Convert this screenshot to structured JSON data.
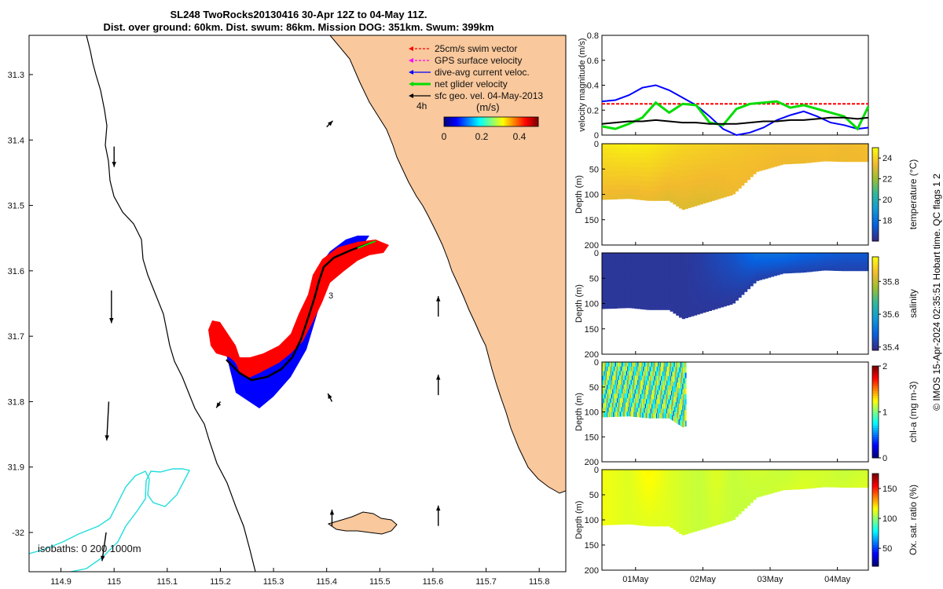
{
  "title": {
    "line1": "SL248 TwoRocks20130416 30-Apr 12Z to 04-May 11Z.",
    "line2": "Dist. over ground: 60km. Dist. swum: 86km. Mission DOG: 351km. Swum: 399km"
  },
  "copyright": "© IMOS 15-Apr-2024 02:35:51 Hobart time. QC flags 1  2",
  "colors": {
    "land": "#f9c89c",
    "swim": "#ff0000",
    "gps": "#ff00ff",
    "dive_avg": "#0000ff",
    "net": "#00dd00",
    "geo": "#000000",
    "isobath_200": "#22dddd"
  },
  "map": {
    "legend": [
      {
        "label": "25cm/s swim vector",
        "color": "#ff0000",
        "style": "dashed"
      },
      {
        "label": "GPS surface velocity",
        "color": "#ff00ff",
        "style": "dashed"
      },
      {
        "label": "dive-avg current veloc.",
        "color": "#0000ff",
        "style": "solid"
      },
      {
        "label": "net glider velocity",
        "color": "#00dd00",
        "style": "thick"
      },
      {
        "label": "sfc geo. vel. 04-May-2013",
        "color": "#000000",
        "style": "solid"
      }
    ],
    "time_marker": "4h",
    "colorbar": {
      "unit": "(m/s)",
      "ticks": [
        "0",
        "0.2",
        "0.4"
      ],
      "range": [
        0,
        0.5
      ]
    },
    "isobaths_label": "isobaths: 0   200  1000m",
    "track_labels": [
      "3"
    ],
    "lon_ticks": [
      "114.9",
      "115",
      "115.1",
      "115.2",
      "115.3",
      "115.4",
      "115.5",
      "115.6",
      "115.7",
      "115.8"
    ],
    "lat_ticks": [
      "31.3",
      "31.4",
      "31.5",
      "31.6",
      "31.7",
      "31.8",
      "31.9",
      "-32"
    ],
    "lon_range": [
      114.84,
      115.85
    ],
    "lat_range": [
      -32.06,
      -31.24
    ]
  },
  "profiles": {
    "time_ticks": [
      "01May",
      "02May",
      "03May",
      "04May"
    ],
    "time_range": [
      "2013-04-30 12:00",
      "2013-05-04 11:00"
    ],
    "velocity": {
      "ylabel": "velocity magnitude (m/s)",
      "yticks": [
        "0",
        "0.2",
        "0.4",
        "0.6",
        "0.8"
      ],
      "ylim": [
        0,
        0.8
      ]
    },
    "panels": [
      {
        "key": "temperature",
        "label": "temperature (°C)",
        "cbar_ticks": [
          "18",
          "20",
          "22",
          "24"
        ],
        "cbar_range": [
          16,
          25
        ]
      },
      {
        "key": "salinity",
        "label": "salinity",
        "cbar_ticks": [
          "35.4",
          "35.6",
          "35.8"
        ],
        "cbar_range": [
          35.38,
          35.95
        ]
      },
      {
        "key": "chla",
        "label": "chl-a (mg m-3)",
        "cbar_ticks": [
          "0",
          "1",
          "2"
        ],
        "cbar_range": [
          0,
          2
        ]
      },
      {
        "key": "oxsat",
        "label": "Ox. sat. ratio (%)",
        "cbar_ticks": [
          "50",
          "100",
          "150"
        ],
        "cbar_range": [
          20,
          175
        ]
      }
    ],
    "depth_label": "Depth (m)",
    "depth_ticks": [
      "0",
      "50",
      "100",
      "150",
      "200"
    ],
    "depth_range": [
      0,
      200
    ]
  },
  "chart_data": [
    {
      "type": "scatter",
      "kind": "map",
      "xlabel": "",
      "ylabel": "",
      "xlim": [
        114.84,
        115.85
      ],
      "ylim": [
        -32.06,
        -31.24
      ],
      "series": [
        {
          "name": "net glider velocity",
          "x": [
            115.26,
            115.31,
            115.35,
            115.39,
            115.41,
            115.45,
            115.48
          ],
          "y": [
            -31.78,
            -31.76,
            -31.72,
            -31.65,
            -31.6,
            -31.57,
            -31.57
          ]
        }
      ],
      "geo_vectors": [
        {
          "lon": 115.0,
          "lat": -31.41,
          "u": 0.0,
          "v": -0.1
        },
        {
          "lon": 114.995,
          "lat": -31.63,
          "u": 0.0,
          "v": -0.16
        },
        {
          "lon": 114.99,
          "lat": -31.8,
          "u": -0.01,
          "v": -0.19
        },
        {
          "lon": 114.985,
          "lat": -32.0,
          "u": -0.02,
          "v": -0.14
        },
        {
          "lon": 115.4,
          "lat": -31.38,
          "u": 0.03,
          "v": 0.03
        },
        {
          "lon": 115.61,
          "lat": -31.67,
          "u": 0.0,
          "v": 0.1
        },
        {
          "lon": 115.61,
          "lat": -31.79,
          "u": 0.0,
          "v": 0.1
        },
        {
          "lon": 115.41,
          "lat": -31.8,
          "u": -0.02,
          "v": 0.04
        },
        {
          "lon": 115.61,
          "lat": -31.99,
          "u": 0.0,
          "v": 0.1
        },
        {
          "lon": 115.41,
          "lat": -31.99,
          "u": 0.0,
          "v": 0.08
        },
        {
          "lon": 115.2,
          "lat": -31.8,
          "u": -0.02,
          "v": -0.03
        }
      ]
    },
    {
      "type": "line",
      "kind": "velocity",
      "title": "",
      "xlabel": "",
      "ylabel": "velocity magnitude (m/s)",
      "ylim": [
        0,
        0.8
      ],
      "x": [
        0.0,
        0.2,
        0.4,
        0.6,
        0.8,
        1.0,
        1.2,
        1.4,
        1.6,
        1.8,
        2.0,
        2.2,
        2.4,
        2.6,
        2.8,
        3.0,
        3.2,
        3.4,
        3.6,
        3.8,
        3.96
      ],
      "series": [
        {
          "name": "25cm/s swim vector",
          "color": "#ff0000",
          "dash": true,
          "values": [
            0.25,
            0.25,
            0.25,
            0.25,
            0.25,
            0.25,
            0.25,
            0.25,
            0.25,
            0.25,
            0.25,
            0.25,
            0.25,
            0.25,
            0.25,
            0.25,
            0.25,
            0.25,
            0.25,
            0.25,
            0.25
          ]
        },
        {
          "name": "dive-avg current veloc.",
          "color": "#0000ff",
          "values": [
            0.27,
            0.28,
            0.32,
            0.38,
            0.4,
            0.36,
            0.3,
            0.24,
            0.15,
            0.05,
            0.0,
            0.02,
            0.06,
            0.12,
            0.16,
            0.19,
            0.15,
            0.1,
            0.08,
            0.05,
            0.06
          ]
        },
        {
          "name": "net glider velocity",
          "color": "#00dd00",
          "values": [
            0.07,
            0.05,
            0.09,
            0.14,
            0.26,
            0.18,
            0.25,
            0.24,
            0.1,
            0.08,
            0.21,
            0.25,
            0.26,
            0.27,
            0.22,
            0.24,
            0.21,
            0.18,
            0.15,
            0.05,
            0.23
          ]
        },
        {
          "name": "sfc geo. vel. 04-May-2013",
          "color": "#000000",
          "values": [
            0.09,
            0.1,
            0.11,
            0.11,
            0.12,
            0.11,
            0.1,
            0.1,
            0.09,
            0.09,
            0.09,
            0.1,
            0.11,
            0.11,
            0.12,
            0.12,
            0.13,
            0.14,
            0.14,
            0.13,
            0.14
          ]
        }
      ]
    },
    {
      "type": "heatmap",
      "kind": "section",
      "title": "",
      "xlabel": "",
      "ylabel": "Depth (m)",
      "x": [
        0.0,
        0.4,
        0.7,
        1.0,
        1.2,
        1.45,
        1.7,
        1.95,
        2.3,
        2.7,
        3.0,
        3.3,
        3.6,
        3.96
      ],
      "bottom_depth": [
        110,
        108,
        112,
        112,
        130,
        120,
        110,
        100,
        55,
        40,
        38,
        34,
        35,
        35
      ],
      "temperature_surface": [
        24.5,
        24.7,
        24.6,
        24.3,
        24.1,
        24.0,
        23.9,
        23.8,
        23.7,
        23.6,
        23.6,
        23.6,
        23.5,
        23.6
      ],
      "temperature_bottom": [
        23.3,
        23.2,
        23.3,
        23.1,
        23.1,
        23.1,
        23.2,
        23.4,
        23.5,
        23.4,
        23.4,
        23.5,
        23.4,
        23.5
      ],
      "salinity_surface": [
        35.4,
        35.4,
        35.4,
        35.4,
        35.4,
        35.41,
        35.43,
        35.45,
        35.5,
        35.5,
        35.48,
        35.47,
        35.46,
        35.46
      ],
      "salinity_bottom": [
        35.4,
        35.4,
        35.4,
        35.4,
        35.4,
        35.4,
        35.4,
        35.4,
        35.41,
        35.42,
        35.42,
        35.42,
        35.42,
        35.42
      ],
      "chla_extent": [
        0.0,
        1.25
      ],
      "chla_mean": 0.95,
      "oxsat_surface": [
        115,
        112,
        118,
        112,
        110,
        108,
        112,
        108,
        110,
        108,
        110,
        110,
        108,
        110
      ],
      "oxsat_bottom": [
        115,
        112,
        112,
        112,
        110,
        108,
        110,
        108,
        108,
        110,
        112,
        110,
        110,
        112
      ]
    }
  ]
}
